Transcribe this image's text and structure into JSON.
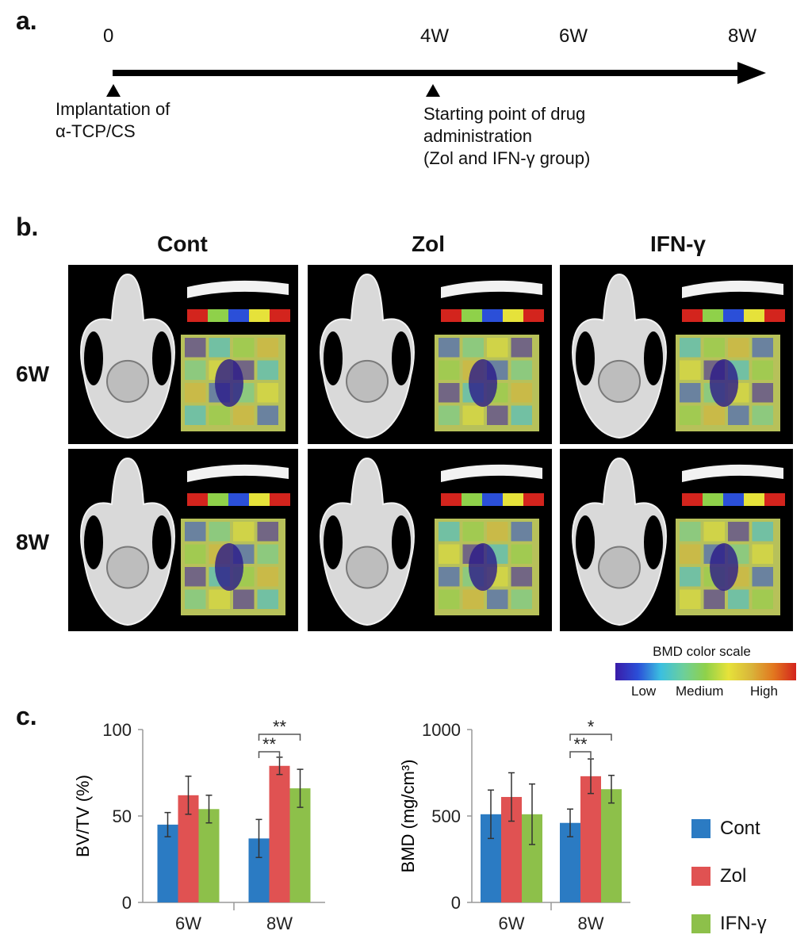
{
  "colors": {
    "cont": "#2b7bc3",
    "zol": "#e05252",
    "ifn": "#8dc04a",
    "axis": "#888888"
  },
  "panel_a": {
    "letter": "a.",
    "ticks": [
      "0",
      "4W",
      "6W",
      "8W"
    ],
    "note_left": [
      "Implantation of",
      "α-TCP/CS"
    ],
    "note_right": [
      "Starting point of drug",
      "administration",
      "(Zol and IFN-γ group)"
    ]
  },
  "panel_b": {
    "letter": "b.",
    "columns": [
      "Cont",
      "Zol",
      "IFN-γ"
    ],
    "rows": [
      "6W",
      "8W"
    ],
    "scale": {
      "title": "BMD color scale",
      "low": "Low",
      "medium": "Medium",
      "high": "High"
    }
  },
  "panel_c": {
    "letter": "c."
  },
  "chart_data": [
    {
      "type": "bar",
      "ylabel": "BV/TV (%)",
      "ylim": [
        0,
        100
      ],
      "yticks": [
        0,
        50,
        100
      ],
      "categories": [
        "6W",
        "8W"
      ],
      "series": [
        {
          "name": "Cont",
          "values": [
            45,
            37
          ],
          "errors": [
            7,
            11
          ]
        },
        {
          "name": "Zol",
          "values": [
            62,
            79
          ],
          "errors": [
            11,
            5
          ]
        },
        {
          "name": "IFN-γ",
          "values": [
            54,
            66
          ],
          "errors": [
            8,
            11
          ]
        }
      ],
      "significance": [
        {
          "category": "8W",
          "from": "Cont",
          "to": "Zol",
          "label": "**"
        },
        {
          "category": "8W",
          "from": "Cont",
          "to": "IFN-γ",
          "label": "**"
        }
      ]
    },
    {
      "type": "bar",
      "ylabel": "BMD (mg/cm³)",
      "ylim": [
        0,
        1000
      ],
      "yticks": [
        0,
        500,
        1000
      ],
      "categories": [
        "6W",
        "8W"
      ],
      "series": [
        {
          "name": "Cont",
          "values": [
            510,
            460
          ],
          "errors": [
            140,
            80
          ]
        },
        {
          "name": "Zol",
          "values": [
            610,
            730
          ],
          "errors": [
            140,
            100
          ]
        },
        {
          "name": "IFN-γ",
          "values": [
            510,
            655
          ],
          "errors": [
            175,
            80
          ]
        }
      ],
      "significance": [
        {
          "category": "8W",
          "from": "Cont",
          "to": "Zol",
          "label": "**"
        },
        {
          "category": "8W",
          "from": "Cont",
          "to": "IFN-γ",
          "label": "*"
        }
      ]
    }
  ],
  "legend": [
    "Cont",
    "Zol",
    "IFN-γ"
  ]
}
